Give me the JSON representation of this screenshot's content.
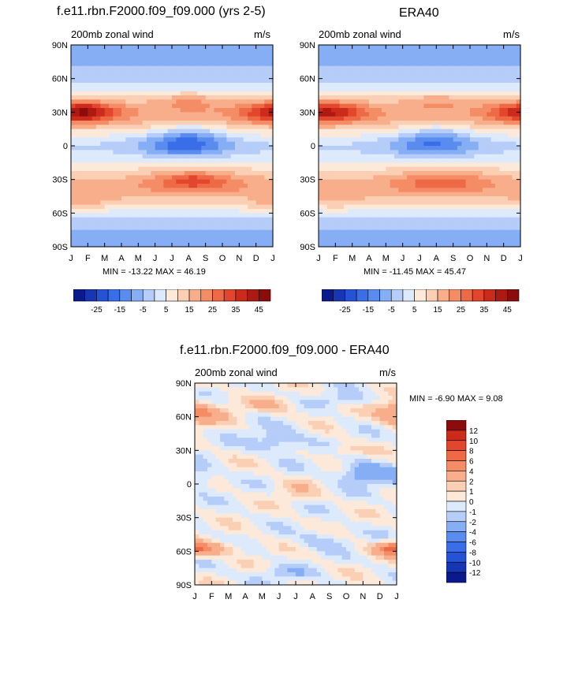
{
  "variable": "200mb zonal wind",
  "units": "m/s",
  "chart_data": [
    {
      "id": "model",
      "type": "heatmap",
      "title": "f.e11.rbn.F2000.f09_f09.000 (yrs 2-5)",
      "subtitle_left": "200mb zonal wind",
      "subtitle_right": "m/s",
      "x_ticks": [
        "J",
        "F",
        "M",
        "A",
        "M",
        "J",
        "J",
        "A",
        "S",
        "O",
        "N",
        "D",
        "J"
      ],
      "y_ticks": [
        "90N",
        "60N",
        "30N",
        "0",
        "30S",
        "60S",
        "90S"
      ],
      "y_values": [
        90,
        60,
        30,
        0,
        -30,
        -60,
        -90
      ],
      "stats_text": "MIN = -13.22 MAX =  46.19",
      "min": -13.22,
      "max": 46.19,
      "levels": [
        -30,
        -25,
        -20,
        -15,
        -10,
        -5,
        0,
        5,
        10,
        15,
        20,
        25,
        30,
        35,
        40,
        45,
        50
      ],
      "level_labels": [
        "-25",
        "-15",
        "-5",
        "5",
        "15",
        "25",
        "35",
        "45"
      ],
      "colors": [
        "#0a1a8c",
        "#1636b4",
        "#2553d8",
        "#3a6ee8",
        "#5a8cf0",
        "#86aef5",
        "#b5cdf8",
        "#ddeafc",
        "#fde9da",
        "#fbcfb4",
        "#f8ae8a",
        "#f48c66",
        "#ee6a47",
        "#e2462c",
        "#cc2a1a",
        "#ad1a12",
        "#8c0c0c"
      ],
      "field": {
        "shift": 0,
        "features": [
          {
            "lat": 30,
            "sigma_lat": 9,
            "month": 0.5,
            "sigma_m": 2.2,
            "amp": 26,
            "wrap": true
          },
          {
            "lat": 32,
            "sigma_lat": 8,
            "month": 1.0,
            "sigma_m": 1.0,
            "amp": 4,
            "wrap": true
          },
          {
            "lat": 40,
            "sigma_lat": 8,
            "month": 7.0,
            "sigma_m": 2.0,
            "amp": 8,
            "wrap": true
          },
          {
            "lat": 0,
            "sigma_lat": 10,
            "month": 6.8,
            "sigma_m": 2.6,
            "amp": -17,
            "wrap": true
          },
          {
            "lat": 12,
            "sigma_lat": 9,
            "month": 7.0,
            "sigma_m": 2.0,
            "amp": -10,
            "wrap": true
          },
          {
            "lat": -32,
            "sigma_lat": 10,
            "month": 7.3,
            "sigma_m": 3.0,
            "amp": 14,
            "wrap": true
          },
          {
            "lat": -30,
            "sigma_lat": 5,
            "month": 7.3,
            "sigma_m": 1.2,
            "amp": 6,
            "wrap": true
          },
          {
            "lat": -50,
            "sigma_lat": 8,
            "month": 1.0,
            "sigma_m": 2.0,
            "amp": 6,
            "wrap": true
          },
          {
            "lat": -55,
            "sigma_lat": 8,
            "month": 11.5,
            "sigma_m": 1.5,
            "amp": 4,
            "wrap": true
          }
        ]
      }
    },
    {
      "id": "obs",
      "type": "heatmap",
      "title": "ERA40",
      "subtitle_left": "200mb zonal wind",
      "subtitle_right": "m/s",
      "x_ticks": [
        "J",
        "F",
        "M",
        "A",
        "M",
        "J",
        "J",
        "A",
        "S",
        "O",
        "N",
        "D",
        "J"
      ],
      "y_ticks": [
        "90N",
        "60N",
        "30N",
        "0",
        "30S",
        "60S",
        "90S"
      ],
      "y_values": [
        90,
        60,
        30,
        0,
        -30,
        -60,
        -90
      ],
      "stats_text": "MIN = -11.45 MAX =  45.47",
      "min": -11.45,
      "max": 45.47,
      "levels": [
        -30,
        -25,
        -20,
        -15,
        -10,
        -5,
        0,
        5,
        10,
        15,
        20,
        25,
        30,
        35,
        40,
        45,
        50
      ],
      "level_labels": [
        "-25",
        "-15",
        "-5",
        "5",
        "15",
        "25",
        "35",
        "45"
      ],
      "colors": [
        "#0a1a8c",
        "#1636b4",
        "#2553d8",
        "#3a6ee8",
        "#5a8cf0",
        "#86aef5",
        "#b5cdf8",
        "#ddeafc",
        "#fde9da",
        "#fbcfb4",
        "#f8ae8a",
        "#f48c66",
        "#ee6a47",
        "#e2462c",
        "#cc2a1a",
        "#ad1a12",
        "#8c0c0c"
      ],
      "field": {
        "shift": 0,
        "features": [
          {
            "lat": 30,
            "sigma_lat": 9,
            "month": 0.5,
            "sigma_m": 2.2,
            "amp": 24,
            "wrap": true
          },
          {
            "lat": 40,
            "sigma_lat": 8,
            "month": 7.0,
            "sigma_m": 2.0,
            "amp": 7,
            "wrap": true
          },
          {
            "lat": 0,
            "sigma_lat": 10,
            "month": 6.8,
            "sigma_m": 2.6,
            "amp": -14,
            "wrap": true
          },
          {
            "lat": 12,
            "sigma_lat": 9,
            "month": 7.0,
            "sigma_m": 2.0,
            "amp": -9,
            "wrap": true
          },
          {
            "lat": -32,
            "sigma_lat": 10,
            "month": 7.3,
            "sigma_m": 3.0,
            "amp": 13,
            "wrap": true
          },
          {
            "lat": -50,
            "sigma_lat": 8,
            "month": 1.0,
            "sigma_m": 2.0,
            "amp": 5,
            "wrap": true
          }
        ]
      }
    },
    {
      "id": "diff",
      "type": "heatmap",
      "title": "f.e11.rbn.F2000.f09_f09.000 - ERA40",
      "subtitle_left": "200mb zonal wind",
      "subtitle_right": "m/s",
      "x_ticks": [
        "J",
        "F",
        "M",
        "A",
        "M",
        "J",
        "J",
        "A",
        "S",
        "O",
        "N",
        "D",
        "J"
      ],
      "y_ticks": [
        "90N",
        "60N",
        "30N",
        "0",
        "30S",
        "60S",
        "90S"
      ],
      "y_values": [
        90,
        60,
        30,
        0,
        -30,
        -60,
        -90
      ],
      "stats_text": "MIN =  -6.90 MAX =   9.08",
      "min": -6.9,
      "max": 9.08,
      "levels": [
        -14,
        -12,
        -10,
        -8,
        -6,
        -4,
        -2,
        -1,
        0,
        1,
        2,
        4,
        6,
        8,
        10,
        12,
        14
      ],
      "level_labels": [
        "-12",
        "-10",
        "-8",
        "-6",
        "-4",
        "-2",
        "-1",
        "0",
        "1",
        "2",
        "4",
        "6",
        "8",
        "10",
        "12"
      ],
      "colors": [
        "#0a1a8c",
        "#1636b4",
        "#2553d8",
        "#3a6ee8",
        "#5a8cf0",
        "#86aef5",
        "#b5cdf8",
        "#ddeafc",
        "#fde9da",
        "#fbcfb4",
        "#f8ae8a",
        "#f48c66",
        "#ee6a47",
        "#e2462c",
        "#cc2a1a",
        "#8c0c0c"
      ],
      "field": {
        "shift": 0,
        "features": [
          {
            "lat": 63,
            "sigma_lat": 10,
            "month": 0.5,
            "sigma_m": 1.6,
            "amp": 2.5,
            "wrap": true
          },
          {
            "lat": 63,
            "sigma_lat": 10,
            "month": 11.8,
            "sigma_m": 1.0,
            "amp": 2.5,
            "wrap": true
          },
          {
            "lat": 70,
            "sigma_lat": 7,
            "month": 4.5,
            "sigma_m": 1.5,
            "amp": 1.8,
            "wrap": true
          },
          {
            "lat": 75,
            "sigma_lat": 6,
            "month": 8.8,
            "sigma_m": 1.5,
            "amp": -1.5,
            "wrap": true
          },
          {
            "lat": 38,
            "sigma_lat": 10,
            "month": 5.0,
            "sigma_m": 1.6,
            "amp": -2.5,
            "wrap": true
          },
          {
            "lat": 10,
            "sigma_lat": 10,
            "month": 10.0,
            "sigma_m": 1.4,
            "amp": -3.5,
            "wrap": true
          },
          {
            "lat": 30,
            "sigma_lat": 6,
            "month": 9.0,
            "sigma_m": 1.2,
            "amp": 1.6,
            "wrap": true
          },
          {
            "lat": 5,
            "sigma_lat": 10,
            "month": 0.3,
            "sigma_m": 0.8,
            "amp": -2.0,
            "wrap": true
          },
          {
            "lat": -5,
            "sigma_lat": 10,
            "month": 6.0,
            "sigma_m": 1.2,
            "amp": 1.2,
            "wrap": true
          },
          {
            "lat": -50,
            "sigma_lat": 9,
            "month": 7.5,
            "sigma_m": 1.5,
            "amp": -1.5,
            "wrap": true
          },
          {
            "lat": -58,
            "sigma_lat": 6,
            "month": 0.5,
            "sigma_m": 2.0,
            "amp": 3.5,
            "wrap": true
          },
          {
            "lat": -58,
            "sigma_lat": 6,
            "month": 11.8,
            "sigma_m": 0.9,
            "amp": 3.5,
            "wrap": true
          },
          {
            "lat": -80,
            "sigma_lat": 7,
            "month": 5.0,
            "sigma_m": 2.0,
            "amp": -1.5,
            "wrap": true
          }
        ]
      }
    }
  ]
}
